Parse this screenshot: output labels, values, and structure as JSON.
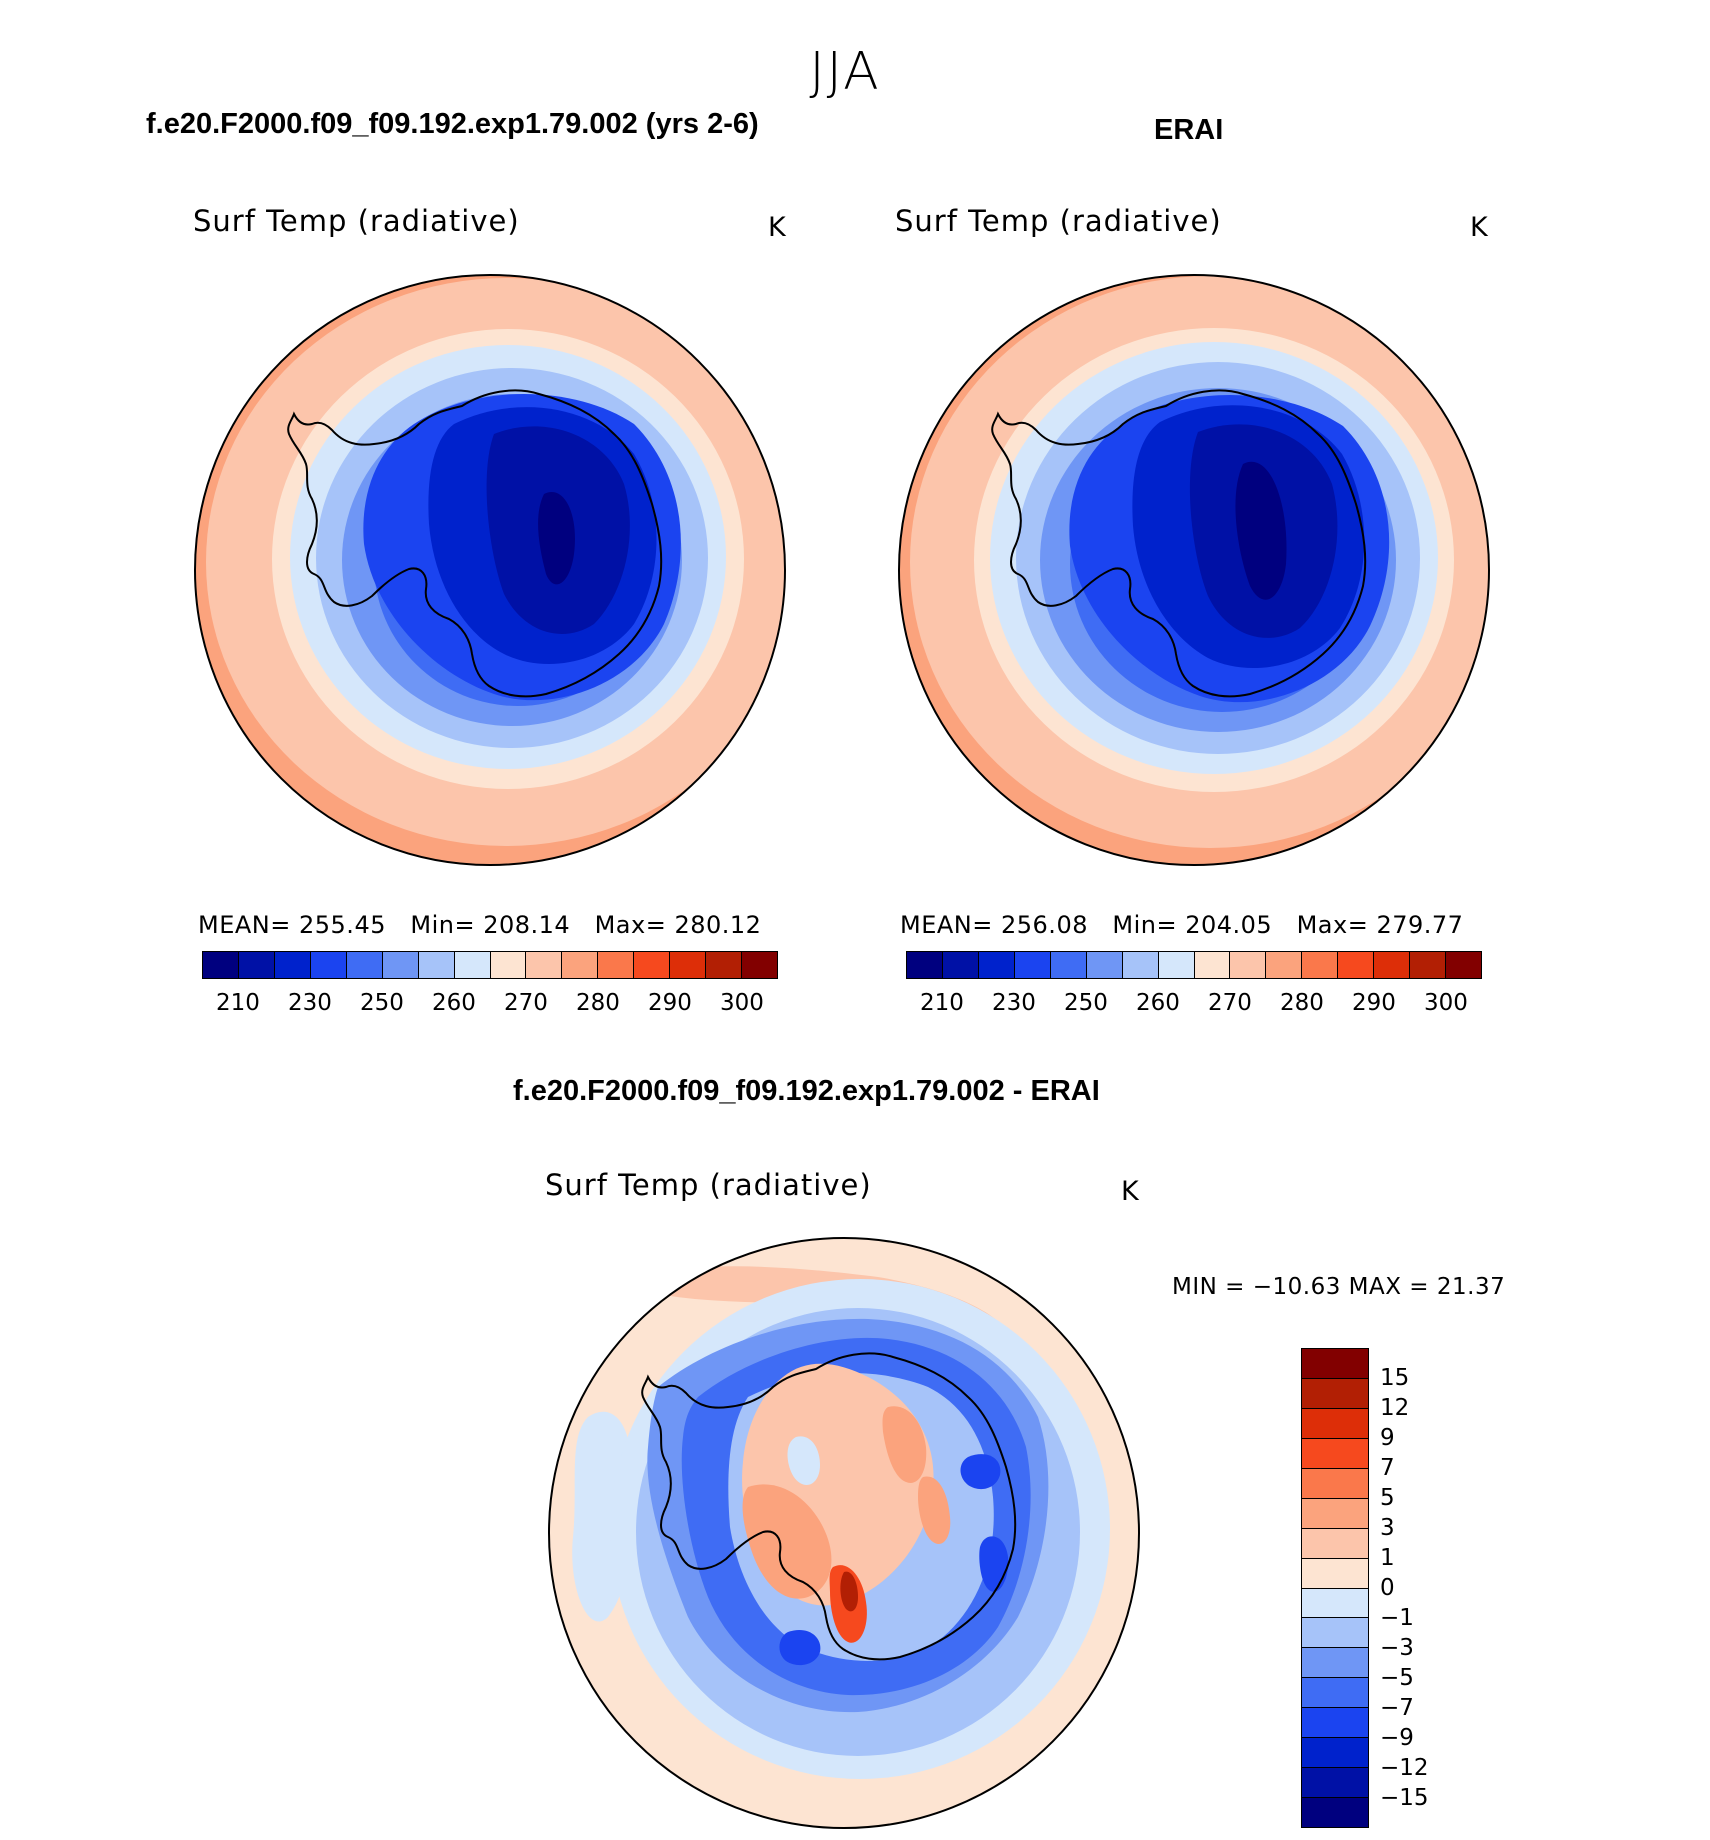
{
  "figure": {
    "title": "JJA"
  },
  "panels": [
    {
      "case_title": "f.e20.F2000.f09_f09.192.exp1.79.002 (yrs 2-6)",
      "variable": "Surf Temp (radiative)",
      "units": "K",
      "stats": {
        "mean_label": "MEAN=",
        "mean": "255.45",
        "min_label": "Min=",
        "min": "208.14",
        "max_label": "Max=",
        "max": "280.12"
      }
    },
    {
      "case_title": "ERAI",
      "variable": "Surf Temp (radiative)",
      "units": "K",
      "stats": {
        "mean_label": "MEAN=",
        "mean": "256.08",
        "min_label": "Min=",
        "min": "204.05",
        "max_label": "Max=",
        "max": "279.77"
      }
    },
    {
      "case_title": "f.e20.F2000.f09_f09.192.exp1.79.002 - ERAI",
      "variable": "Surf Temp (radiative)",
      "units": "K",
      "stats_text": "MIN = −10.63 MAX =   21.37"
    }
  ],
  "colorbar_abs": {
    "colors": [
      "#00007f",
      "#0011a6",
      "#0022cc",
      "#1b44f0",
      "#3f6cf4",
      "#6f96f5",
      "#a6c3f9",
      "#d5e7fb",
      "#fde4d2",
      "#fcc5ab",
      "#fba37d",
      "#fa784b",
      "#f6491e",
      "#dd2e08",
      "#b21f04",
      "#820000"
    ],
    "ticks": [
      "210",
      "230",
      "250",
      "260",
      "270",
      "280",
      "290",
      "300"
    ]
  },
  "colorbar_diff": {
    "colors": [
      "#820000",
      "#b21f04",
      "#dd2e08",
      "#f6491e",
      "#fa784b",
      "#fba37d",
      "#fcc5ab",
      "#fde4d2",
      "#d5e7fb",
      "#a6c3f9",
      "#6f96f5",
      "#3f6cf4",
      "#1b44f0",
      "#0022cc",
      "#0011a6",
      "#00007f"
    ],
    "ticks": [
      "15",
      "12",
      "9",
      "7",
      "5",
      "3",
      "1",
      "0",
      "−1",
      "−3",
      "−5",
      "−7",
      "−9",
      "−12",
      "−15"
    ]
  }
}
